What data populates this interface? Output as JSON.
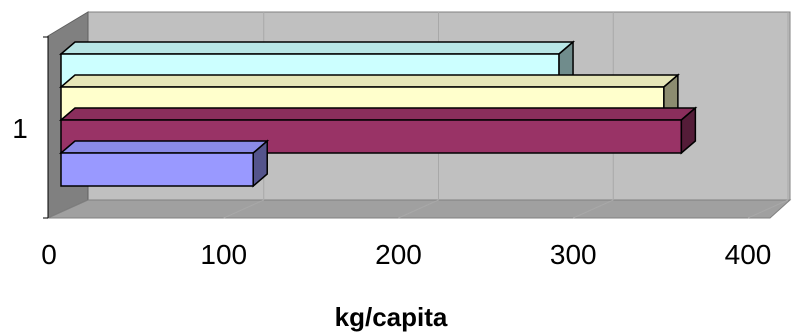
{
  "chart_data": {
    "type": "bar",
    "orientation": "horizontal",
    "style": "3d",
    "categories": [
      "1"
    ],
    "series": [
      {
        "values": [
          110
        ],
        "color": "#9999FF"
      },
      {
        "values": [
          355
        ],
        "color": "#993366"
      },
      {
        "values": [
          345
        ],
        "color": "#FFFFCC"
      },
      {
        "values": [
          285
        ],
        "color": "#CCFFFF"
      }
    ],
    "title": "",
    "xlabel": "kg/capita",
    "ylabel": "",
    "xlim": [
      0,
      400
    ],
    "xticks": [
      "0",
      "100",
      "200",
      "300",
      "400"
    ],
    "grid": true,
    "legend": "none",
    "wall_color": "#C0C0C0"
  }
}
